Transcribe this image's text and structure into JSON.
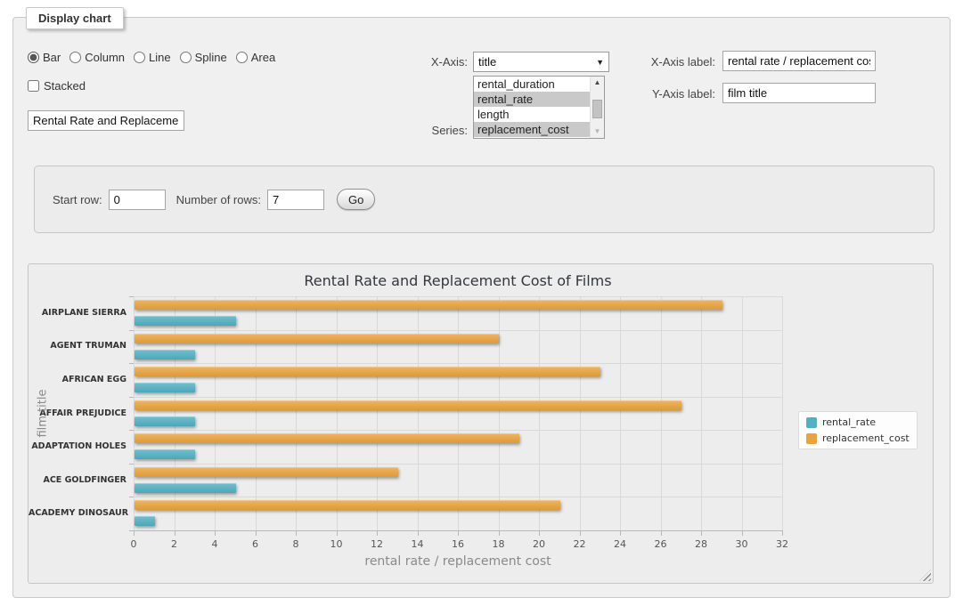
{
  "fieldset": {
    "legend": "Display chart"
  },
  "form": {
    "chart_types": {
      "options": [
        "Bar",
        "Column",
        "Line",
        "Spline",
        "Area"
      ],
      "selected": "Bar"
    },
    "stacked": {
      "label": "Stacked",
      "checked": false
    },
    "chart_title_value": "Rental Rate and Replacement Cost of Films",
    "x_axis": {
      "label": "X-Axis:",
      "value": "title"
    },
    "series": {
      "label": "Series:",
      "visible_options": [
        {
          "label": "rental_duration",
          "selected": false
        },
        {
          "label": "rental_rate",
          "selected": true
        },
        {
          "label": "length",
          "selected": false
        },
        {
          "label": "replacement_cost",
          "selected": true
        }
      ]
    },
    "x_axis_label": {
      "label": "X-Axis label:",
      "value": "rental rate / replacement cost"
    },
    "y_axis_label": {
      "label": "Y-Axis label:",
      "value": "film title"
    },
    "rows": {
      "start_label": "Start row:",
      "start_value": "0",
      "count_label": "Number of rows:",
      "count_value": "7",
      "go_label": "Go"
    }
  },
  "chart_data": {
    "type": "bar",
    "title": "Rental Rate and Replacement Cost of Films",
    "categories": [
      "AIRPLANE SIERRA",
      "AGENT TRUMAN",
      "AFRICAN EGG",
      "AFFAIR PREJUDICE",
      "ADAPTATION HOLES",
      "ACE GOLDFINGER",
      "ACADEMY DINOSAUR"
    ],
    "series": [
      {
        "name": "rental_rate",
        "color": "#4FB2C4",
        "values": [
          4.99,
          2.99,
          2.99,
          2.99,
          2.99,
          4.99,
          0.99
        ]
      },
      {
        "name": "replacement_cost",
        "color": "#EBA43B",
        "values": [
          28.99,
          17.99,
          22.99,
          26.99,
          18.99,
          12.99,
          20.99
        ]
      }
    ],
    "xlabel": "rental rate / replacement cost",
    "ylabel": "film title",
    "xlim": [
      0,
      32
    ],
    "x_tick_step": 2,
    "x_ticks": [
      0,
      2,
      4,
      6,
      8,
      10,
      12,
      14,
      16,
      18,
      20,
      22,
      24,
      26,
      28,
      30,
      32
    ],
    "grid": true,
    "legend_position": "right"
  }
}
